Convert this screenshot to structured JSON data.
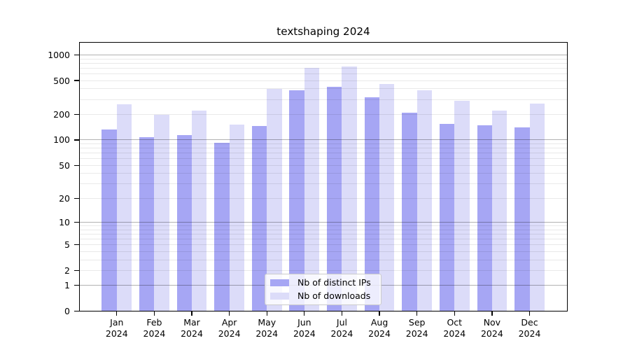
{
  "title": "textshaping 2024",
  "chart_data": {
    "type": "bar",
    "title": "textshaping 2024",
    "categories": [
      "Jan",
      "Feb",
      "Mar",
      "Apr",
      "May",
      "Jun",
      "Jul",
      "Aug",
      "Sep",
      "Oct",
      "Nov",
      "Dec"
    ],
    "category_year": "2024",
    "series": [
      {
        "name": "Nb of distinct IPs",
        "color": "#a6a6f4",
        "values": [
          134,
          107,
          114,
          93,
          147,
          381,
          424,
          320,
          209,
          154,
          150,
          141
        ]
      },
      {
        "name": "Nb of downloads",
        "color": "#dcdcf9",
        "values": [
          261,
          200,
          223,
          151,
          400,
          700,
          725,
          452,
          386,
          287,
          223,
          267
        ]
      }
    ],
    "xlabel": "",
    "ylabel": "",
    "yscale": "log1p (y proportional to log10(1+value))",
    "y_ticks": [
      1000,
      500,
      200,
      100,
      50,
      20,
      10,
      5,
      2,
      1,
      0
    ],
    "ylim": [
      0,
      1380
    ],
    "grid": "horizontal major (powers of 10) + minor (2-9 per decade)",
    "legend_position": "lower center inside plot"
  },
  "colors": {
    "distinct_ips_bar": "#a6a6f4",
    "downloads_bar": "#dcdcf9",
    "major_grid": "#b3b3b3",
    "minor_grid": "#ebebeb",
    "axis_frame": "#000000",
    "background": "#ffffff",
    "legend_border": "#cbcbcb"
  }
}
